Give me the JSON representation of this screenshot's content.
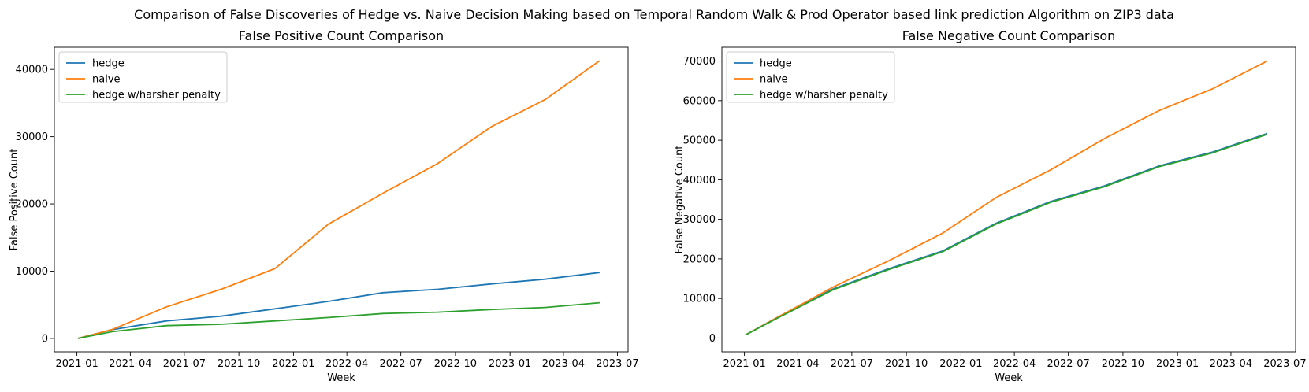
{
  "figure": {
    "suptitle": "Comparison of False Discoveries of Hedge vs. Naive Decision Making based on Temporal Random Walk & Prod Operator based link prediction Algorithm on ZIP3 data"
  },
  "colors": {
    "hedge": "#1f77b4",
    "naive": "#ff7f0e",
    "harsh": "#2ca02c"
  },
  "chart_data": [
    {
      "type": "line",
      "title": "False Positive Count Comparison",
      "xlabel": "Week",
      "ylabel": "False Positive Count",
      "x_type": "date",
      "xlim": [
        "2020-11-24",
        "2023-07-19"
      ],
      "ylim": [
        -2000,
        43300
      ],
      "xticks": [
        "2021-01",
        "2021-04",
        "2021-07",
        "2021-10",
        "2022-01",
        "2022-04",
        "2022-07",
        "2022-10",
        "2023-01",
        "2023-04",
        "2023-07"
      ],
      "yticks": [
        0,
        10000,
        20000,
        30000,
        40000
      ],
      "legend_position": "upper-left",
      "grid": false,
      "x": [
        "2021-01-03",
        "2021-03-01",
        "2021-06-01",
        "2021-09-01",
        "2021-12-01",
        "2022-03-01",
        "2022-06-01",
        "2022-09-01",
        "2022-12-01",
        "2023-03-01",
        "2023-06-01"
      ],
      "series": [
        {
          "name": "hedge",
          "color": "#1f77b4",
          "values": [
            0,
            1300,
            2600,
            3300,
            4400,
            5500,
            6800,
            7300,
            8100,
            8800,
            9800
          ]
        },
        {
          "name": "naive",
          "color": "#ff7f0e",
          "values": [
            0,
            1300,
            4700,
            7300,
            10400,
            17000,
            21600,
            26000,
            31500,
            35500,
            41300
          ]
        },
        {
          "name": "hedge w/harsher penalty",
          "color": "#2ca02c",
          "values": [
            0,
            1000,
            1900,
            2100,
            2600,
            3100,
            3700,
            3900,
            4300,
            4600,
            5300
          ]
        }
      ]
    },
    {
      "type": "line",
      "title": "False Negative Count Comparison",
      "xlabel": "Week",
      "ylabel": "False Negative Count",
      "x_type": "date",
      "xlim": [
        "2020-11-24",
        "2023-07-19"
      ],
      "ylim": [
        -3500,
        73500
      ],
      "xticks": [
        "2021-01",
        "2021-04",
        "2021-07",
        "2021-10",
        "2022-01",
        "2022-04",
        "2022-07",
        "2022-10",
        "2023-01",
        "2023-04",
        "2023-07"
      ],
      "yticks": [
        0,
        10000,
        20000,
        30000,
        40000,
        50000,
        60000,
        70000
      ],
      "legend_position": "upper-left",
      "grid": false,
      "x": [
        "2021-01-03",
        "2021-03-01",
        "2021-06-01",
        "2021-09-01",
        "2021-12-01",
        "2022-03-01",
        "2022-06-01",
        "2022-09-01",
        "2022-12-01",
        "2023-03-01",
        "2023-06-01"
      ],
      "series": [
        {
          "name": "hedge",
          "color": "#1f77b4",
          "values": [
            800,
            5500,
            12500,
            17500,
            22000,
            29000,
            34500,
            38500,
            43500,
            47000,
            51700
          ]
        },
        {
          "name": "naive",
          "color": "#ff7f0e",
          "values": [
            800,
            5500,
            13000,
            19500,
            26500,
            35500,
            42500,
            50500,
            57500,
            63000,
            70000
          ]
        },
        {
          "name": "hedge w/harsher penalty",
          "color": "#2ca02c",
          "values": [
            800,
            5300,
            12300,
            17300,
            21800,
            28800,
            34300,
            38300,
            43300,
            46800,
            51500
          ]
        }
      ]
    }
  ]
}
